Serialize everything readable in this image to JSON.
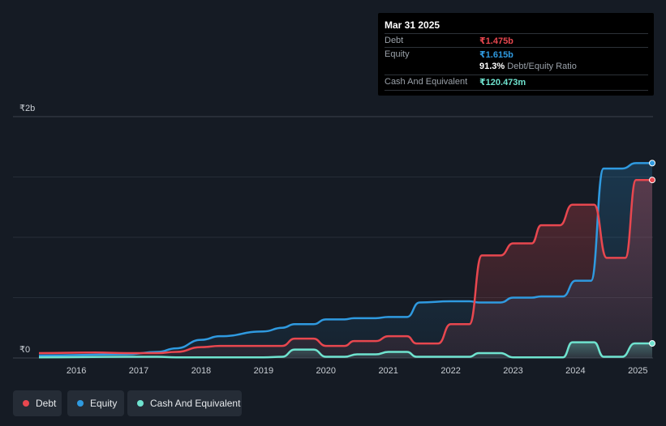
{
  "chart_data": {
    "type": "area",
    "currency": "₹",
    "y_axis": {
      "ticks": [
        {
          "value": 0,
          "label": "₹0"
        },
        {
          "value": 2,
          "label": "₹2b"
        }
      ],
      "min": 0,
      "max": 2,
      "unit": "billion INR"
    },
    "x_axis": {
      "ticks": [
        "2016",
        "2017",
        "2018",
        "2019",
        "2020",
        "2021",
        "2022",
        "2023",
        "2024",
        "2025"
      ],
      "min": 2015.4,
      "max": 2025.23
    },
    "series": [
      {
        "name": "Debt",
        "color": "#e8474f",
        "points": [
          [
            2015.4,
            0.04
          ],
          [
            2016.3,
            0.045
          ],
          [
            2016.8,
            0.04
          ],
          [
            2017.3,
            0.04
          ],
          [
            2017.6,
            0.05
          ],
          [
            2018.0,
            0.09
          ],
          [
            2018.3,
            0.1
          ],
          [
            2019.0,
            0.1
          ],
          [
            2019.3,
            0.1
          ],
          [
            2019.5,
            0.16
          ],
          [
            2019.8,
            0.16
          ],
          [
            2020.0,
            0.1
          ],
          [
            2020.3,
            0.1
          ],
          [
            2020.45,
            0.14
          ],
          [
            2020.8,
            0.14
          ],
          [
            2021.0,
            0.18
          ],
          [
            2021.3,
            0.18
          ],
          [
            2021.45,
            0.12
          ],
          [
            2021.8,
            0.12
          ],
          [
            2022.0,
            0.28
          ],
          [
            2022.3,
            0.28
          ],
          [
            2022.5,
            0.85
          ],
          [
            2022.8,
            0.85
          ],
          [
            2023.0,
            0.95
          ],
          [
            2023.3,
            0.95
          ],
          [
            2023.45,
            1.1
          ],
          [
            2023.75,
            1.1
          ],
          [
            2023.95,
            1.27
          ],
          [
            2024.3,
            1.27
          ],
          [
            2024.5,
            0.83
          ],
          [
            2024.8,
            0.83
          ],
          [
            2024.97,
            1.475
          ],
          [
            2025.23,
            1.475
          ]
        ]
      },
      {
        "name": "Equity",
        "color": "#2f9ae0",
        "points": [
          [
            2015.4,
            0.02
          ],
          [
            2016.8,
            0.03
          ],
          [
            2017.3,
            0.05
          ],
          [
            2017.6,
            0.08
          ],
          [
            2018.0,
            0.15
          ],
          [
            2018.3,
            0.18
          ],
          [
            2019.0,
            0.22
          ],
          [
            2019.3,
            0.25
          ],
          [
            2019.5,
            0.28
          ],
          [
            2019.8,
            0.28
          ],
          [
            2020.0,
            0.32
          ],
          [
            2020.3,
            0.32
          ],
          [
            2020.45,
            0.33
          ],
          [
            2020.8,
            0.33
          ],
          [
            2021.0,
            0.34
          ],
          [
            2021.3,
            0.34
          ],
          [
            2021.5,
            0.46
          ],
          [
            2022.0,
            0.47
          ],
          [
            2022.3,
            0.47
          ],
          [
            2022.45,
            0.46
          ],
          [
            2022.8,
            0.46
          ],
          [
            2023.0,
            0.5
          ],
          [
            2023.3,
            0.5
          ],
          [
            2023.45,
            0.51
          ],
          [
            2023.8,
            0.51
          ],
          [
            2024.0,
            0.64
          ],
          [
            2024.25,
            0.64
          ],
          [
            2024.45,
            1.57
          ],
          [
            2024.75,
            1.57
          ],
          [
            2024.97,
            1.615
          ],
          [
            2025.23,
            1.615
          ]
        ]
      },
      {
        "name": "Cash And Equivalent",
        "color": "#6fe3cf",
        "points": [
          [
            2015.4,
            0.005
          ],
          [
            2016.8,
            0.01
          ],
          [
            2017.3,
            0.01
          ],
          [
            2017.6,
            0.005
          ],
          [
            2019.0,
            0.005
          ],
          [
            2019.3,
            0.01
          ],
          [
            2019.5,
            0.07
          ],
          [
            2019.8,
            0.07
          ],
          [
            2020.0,
            0.01
          ],
          [
            2020.3,
            0.01
          ],
          [
            2020.5,
            0.03
          ],
          [
            2020.8,
            0.03
          ],
          [
            2021.0,
            0.05
          ],
          [
            2021.3,
            0.05
          ],
          [
            2021.45,
            0.01
          ],
          [
            2022.3,
            0.01
          ],
          [
            2022.45,
            0.04
          ],
          [
            2022.8,
            0.04
          ],
          [
            2023.0,
            0.005
          ],
          [
            2023.8,
            0.005
          ],
          [
            2023.95,
            0.13
          ],
          [
            2024.3,
            0.13
          ],
          [
            2024.45,
            0.01
          ],
          [
            2024.75,
            0.01
          ],
          [
            2024.95,
            0.12047
          ],
          [
            2025.23,
            0.12047
          ]
        ]
      }
    ],
    "tooltip": {
      "date": "Mar 31 2025",
      "rows": [
        {
          "label": "Debt",
          "value": "₹1.475b",
          "color": "#e8474f"
        },
        {
          "label": "Equity",
          "value": "₹1.615b",
          "color": "#2f9ae0"
        },
        {
          "label": "Cash And Equivalent",
          "value": "₹120.473m",
          "color": "#6fe3cf"
        }
      ],
      "ratio_value": "91.3%",
      "ratio_label": "Debt/Equity Ratio"
    },
    "legend": [
      {
        "label": "Debt",
        "color": "#e8474f"
      },
      {
        "label": "Equity",
        "color": "#2f9ae0"
      },
      {
        "label": "Cash And Equivalent",
        "color": "#6fe3cf"
      }
    ]
  }
}
